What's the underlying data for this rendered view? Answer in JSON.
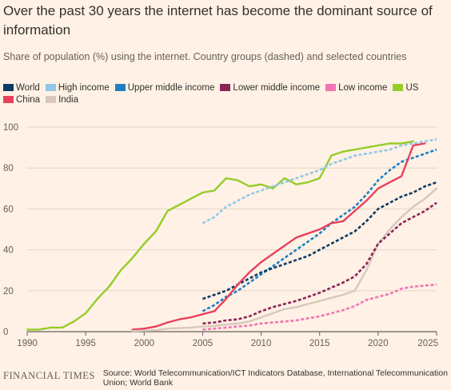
{
  "title": "Over the past 30 years the internet has become the dominant source of information",
  "subtitle": "Share of population (%) using the internet. Country groups (dashed) and selected countries",
  "footer": {
    "brand": "FINANCIAL TIMES",
    "source": "Source: World Telecommunication/ICT Indicators Database, International Telecommunication Union; World Bank"
  },
  "legend_rows": [
    [
      "World",
      "High income",
      "Upper middle income",
      "Lower middle income",
      "Low income",
      "US"
    ],
    [
      "China",
      "India"
    ]
  ],
  "chart_data": {
    "type": "line",
    "xlim": [
      1990,
      2025
    ],
    "ylim": [
      0,
      100
    ],
    "x_ticks": [
      1990,
      1995,
      2000,
      2005,
      2010,
      2015,
      2020,
      2025
    ],
    "y_ticks": [
      0,
      20,
      40,
      60,
      80,
      100
    ],
    "grid": true,
    "legend_position": "top",
    "series": [
      {
        "name": "US",
        "color": "#96cc28",
        "dashed": false,
        "x": [
          1990,
          1991,
          1992,
          1993,
          1994,
          1995,
          1996,
          1997,
          1998,
          1999,
          2000,
          2001,
          2002,
          2003,
          2004,
          2005,
          2006,
          2007,
          2008,
          2009,
          2010,
          2011,
          2012,
          2013,
          2014,
          2015,
          2016,
          2017,
          2018,
          2019,
          2020,
          2021,
          2022,
          2023
        ],
        "y": [
          1,
          1,
          2,
          2,
          5,
          9,
          16,
          22,
          30,
          36,
          43,
          49,
          59,
          62,
          65,
          68,
          69,
          75,
          74,
          71,
          72,
          70,
          75,
          72,
          73,
          75,
          86,
          88,
          89,
          90,
          91,
          92,
          92,
          93
        ]
      },
      {
        "name": "High income",
        "color": "#8fc8e8",
        "dashed": true,
        "x": [
          2005,
          2006,
          2007,
          2008,
          2009,
          2010,
          2011,
          2012,
          2013,
          2014,
          2015,
          2016,
          2017,
          2018,
          2019,
          2020,
          2021,
          2022,
          2023,
          2024,
          2025
        ],
        "y": [
          53,
          56,
          61,
          64,
          67,
          69,
          71,
          73,
          75,
          77,
          79,
          82,
          84,
          86,
          87,
          88,
          89,
          91,
          92,
          93,
          94
        ]
      },
      {
        "name": "Upper middle income",
        "color": "#1f7fc4",
        "dashed": true,
        "x": [
          2005,
          2006,
          2007,
          2008,
          2009,
          2010,
          2011,
          2012,
          2013,
          2014,
          2015,
          2016,
          2017,
          2018,
          2019,
          2020,
          2021,
          2022,
          2023,
          2024,
          2025
        ],
        "y": [
          10,
          13,
          17,
          20,
          24,
          28,
          32,
          36,
          40,
          44,
          48,
          53,
          57,
          61,
          67,
          74,
          79,
          83,
          85,
          87,
          89
        ]
      },
      {
        "name": "World",
        "color": "#0f3b63",
        "dashed": true,
        "x": [
          2005,
          2006,
          2007,
          2008,
          2009,
          2010,
          2011,
          2012,
          2013,
          2014,
          2015,
          2016,
          2017,
          2018,
          2019,
          2020,
          2021,
          2022,
          2023,
          2024,
          2025
        ],
        "y": [
          16,
          18,
          20,
          23,
          26,
          29,
          31,
          33,
          35,
          37,
          40,
          43,
          46,
          49,
          54,
          60,
          63,
          66,
          68,
          71,
          73
        ]
      },
      {
        "name": "China",
        "color": "#e8405c",
        "dashed": false,
        "x": [
          1999,
          2000,
          2001,
          2002,
          2003,
          2004,
          2005,
          2006,
          2007,
          2008,
          2009,
          2010,
          2011,
          2012,
          2013,
          2014,
          2015,
          2016,
          2017,
          2018,
          2019,
          2020,
          2021,
          2022,
          2023,
          2024
        ],
        "y": [
          1,
          1.5,
          2.5,
          4.5,
          6,
          7,
          8.5,
          10,
          16,
          23,
          29,
          34,
          38,
          42,
          46,
          48,
          50,
          53,
          54,
          59,
          64,
          70,
          73,
          76,
          91,
          92
        ]
      },
      {
        "name": "India",
        "color": "#d8c8bc",
        "dashed": false,
        "x": [
          1999,
          2000,
          2001,
          2002,
          2003,
          2004,
          2005,
          2006,
          2007,
          2008,
          2009,
          2010,
          2011,
          2012,
          2013,
          2014,
          2015,
          2016,
          2017,
          2018,
          2019,
          2020,
          2021,
          2022,
          2023,
          2024,
          2025
        ],
        "y": [
          0.3,
          0.5,
          0.7,
          1.5,
          1.7,
          2,
          2.5,
          2.8,
          3.5,
          4,
          5,
          7,
          9,
          11,
          12,
          13.5,
          15,
          16.5,
          18,
          20,
          30,
          43,
          50,
          56,
          61,
          65,
          70
        ]
      },
      {
        "name": "Lower middle income",
        "color": "#8c2456",
        "dashed": true,
        "x": [
          2005,
          2006,
          2007,
          2008,
          2009,
          2010,
          2011,
          2012,
          2013,
          2014,
          2015,
          2016,
          2017,
          2018,
          2019,
          2020,
          2021,
          2022,
          2023,
          2024,
          2025
        ],
        "y": [
          4,
          4.5,
          5.5,
          6,
          7.5,
          10,
          12,
          13.5,
          15,
          17,
          19,
          21.5,
          24,
          27,
          33,
          43,
          48,
          53,
          56,
          59,
          63
        ]
      },
      {
        "name": "Low income",
        "color": "#f075b4",
        "dashed": true,
        "x": [
          2005,
          2006,
          2007,
          2008,
          2009,
          2010,
          2011,
          2012,
          2013,
          2014,
          2015,
          2016,
          2017,
          2018,
          2019,
          2020,
          2021,
          2022,
          2023,
          2024,
          2025
        ],
        "y": [
          1,
          1.5,
          2,
          2.5,
          3,
          4,
          4.5,
          5,
          5.5,
          6.5,
          7.5,
          9,
          10.5,
          12.5,
          15.5,
          17,
          18.5,
          21,
          22,
          22.5,
          23
        ]
      }
    ]
  }
}
